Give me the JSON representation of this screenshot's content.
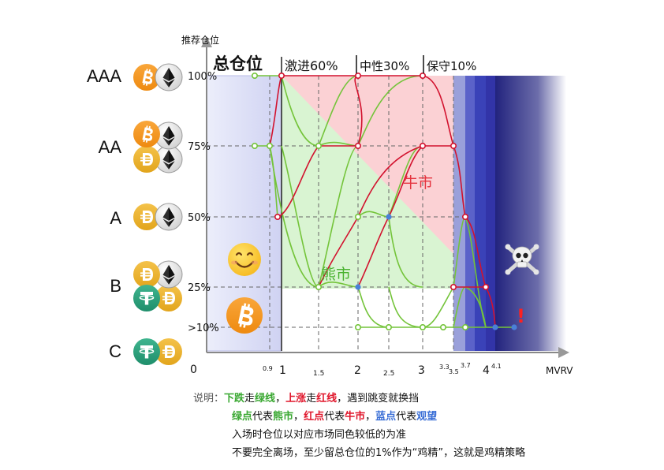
{
  "y_axis_label": "推荐仓位",
  "x_axis_label": "MVRV",
  "heading": {
    "total": "总仓位",
    "aggressive": "激进60%",
    "neutral": "中性30%",
    "conservative": "保守10%"
  },
  "tiers": [
    "AAA",
    "AA",
    "A",
    "B",
    "C"
  ],
  "y_ticks": [
    "100%",
    "75%",
    "50%",
    "25%",
    ">10%"
  ],
  "x_ticks": [
    {
      "label": "0",
      "value": 0
    },
    {
      "label": "0.9",
      "value": 0.9
    },
    {
      "label": "1",
      "value": 1
    },
    {
      "label": "1.5",
      "value": 1.5
    },
    {
      "label": "2",
      "value": 2
    },
    {
      "label": "2.5",
      "value": 2.5
    },
    {
      "label": "3",
      "value": 3
    },
    {
      "label": "3.3",
      "value": 3.3
    },
    {
      "label": "3.5",
      "value": 3.5
    },
    {
      "label": "3.7",
      "value": 3.7
    },
    {
      "label": "4",
      "value": 4
    },
    {
      "label": "4.1",
      "value": 4.1
    }
  ],
  "region_labels": {
    "bull": "牛市",
    "bear": "熊市",
    "warning": "!"
  },
  "icons": {
    "smile": "smiling-face-emoji",
    "skull": "skull-and-crossbones-emoji",
    "bitcoin": "bitcoin-icon",
    "ethereum": "ethereum-icon",
    "usdd": "usdd-icon",
    "tether": "tether-icon"
  },
  "colors": {
    "green_line": "#74c43a",
    "red_line": "#d2122e",
    "blue_dot": "#4a80d8",
    "left_zone": "#d6d7f4",
    "bull_fill": "#fbd1d4",
    "bear_fill": "#d9f4d2",
    "bitcoin": "#f7931a",
    "usdd": "#e8ad1f",
    "tether": "#26a17b"
  },
  "notes": {
    "label": "说明：",
    "line1": {
      "p1": "下跌",
      "p2": "走",
      "p3": "绿线",
      "p4": "，",
      "p5": "上涨",
      "p6": "走",
      "p7": "红线",
      "p8": "，遇到跳变就换挡"
    },
    "line2": {
      "p1": "绿点",
      "p2": "代表",
      "p3": "熊市",
      "p4": "，",
      "p5": "红点",
      "p6": "代表",
      "p7": "牛市",
      "p8": "，",
      "p9": "蓝点",
      "p10": "代表",
      "p11": "观望"
    },
    "line3": "入场时仓位以对应市场同色较低的为准",
    "line4": "不要完全离场，至少留总仓位的1%作为“鸡精”，这就是鸡精策略"
  }
}
